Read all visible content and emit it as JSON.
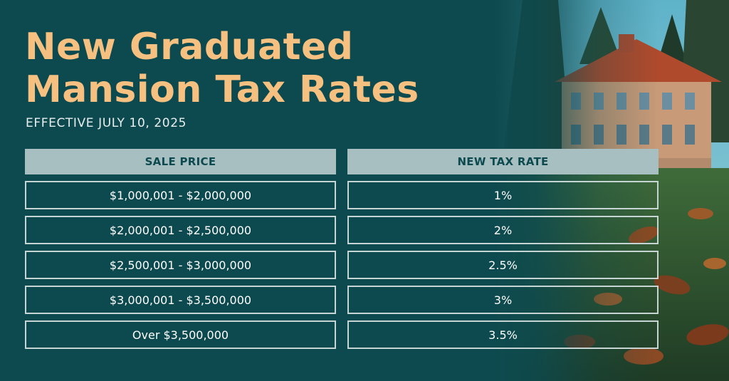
{
  "title": {
    "line1": "New Graduated",
    "line2": "Mansion Tax Rates"
  },
  "subtitle": "EFFECTIVE JULY 10, 2025",
  "table": {
    "headers": [
      "SALE PRICE",
      "NEW TAX RATE"
    ],
    "rows": [
      {
        "price": "$1,000,001 - $2,000,000",
        "rate": "1%"
      },
      {
        "price": "$2,000,001 - $2,500,000",
        "rate": "2%"
      },
      {
        "price": "$2,500,001 - $3,000,000",
        "rate": "2.5%"
      },
      {
        "price": "$3,000,001 - $3,500,000",
        "rate": "3%"
      },
      {
        "price": "Over $3,500,000",
        "rate": "3.5%"
      }
    ]
  },
  "colors": {
    "background": "#0d4a4f",
    "title": "#f6c180",
    "header_fill": "#a7bfc0",
    "cell_border": "#c6d4d4"
  },
  "image": {
    "subject": "mansion-photo"
  }
}
